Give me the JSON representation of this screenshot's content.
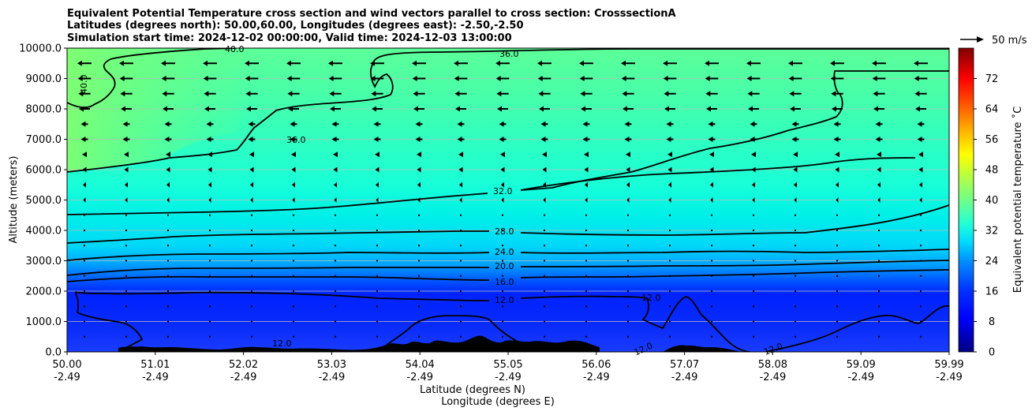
{
  "chart_data": {
    "type": "heatmap",
    "title_lines": [
      "Equivalent Potential Temperature cross section and wind vectors parallel to cross section: CrosssectionA",
      "Latitudes (degrees north): 50.00,60.00, Longitudes (degrees east): -2.50,-2.50",
      "Simulation start time: 2024-12-02 00:00:00, Valid time: 2024-12-03 13:00:00"
    ],
    "xlabel": "Latitude (degrees N)",
    "xlabel2": "Longitude (degrees E)",
    "ylabel": "Altitude (meters)",
    "xlim": [
      50.0,
      59.99
    ],
    "ylim": [
      0,
      10000
    ],
    "x_ticks": [
      {
        "lat": "50.00",
        "lon": "-2.49"
      },
      {
        "lat": "51.01",
        "lon": "-2.49"
      },
      {
        "lat": "52.02",
        "lon": "-2.49"
      },
      {
        "lat": "53.03",
        "lon": "-2.49"
      },
      {
        "lat": "54.04",
        "lon": "-2.49"
      },
      {
        "lat": "55.05",
        "lon": "-2.49"
      },
      {
        "lat": "56.06",
        "lon": "-2.49"
      },
      {
        "lat": "57.07",
        "lon": "-2.49"
      },
      {
        "lat": "58.08",
        "lon": "-2.49"
      },
      {
        "lat": "59.09",
        "lon": "-2.49"
      },
      {
        "lat": "59.99",
        "lon": "-2.49"
      }
    ],
    "y_ticks": [
      "0.0",
      "1000.0",
      "2000.0",
      "3000.0",
      "4000.0",
      "5000.0",
      "6000.0",
      "7000.0",
      "8000.0",
      "9000.0",
      "10000.0"
    ],
    "grid": "horizontal",
    "colorbar": {
      "label": "Equivalent potential temperature ˚C",
      "ticks": [
        "0",
        "8",
        "16",
        "24",
        "32",
        "40",
        "48",
        "56",
        "64",
        "72"
      ],
      "range": [
        0,
        80
      ]
    },
    "quiver_key": {
      "label": "50 m/s",
      "speed": 50
    },
    "contour_labels": [
      "40.0",
      "36.0",
      "36.0",
      "40.0",
      "32.0",
      "28.0",
      "24.0",
      "20.0",
      "16.0",
      "12.0",
      "12.0",
      "12.0",
      "12.0",
      "12.0"
    ],
    "field_bands": [
      {
        "alt_top": 1000,
        "theta_e": 10
      },
      {
        "alt_top": 2000,
        "theta_e": 13
      },
      {
        "alt_top": 2700,
        "theta_e": 18
      },
      {
        "alt_top": 3000,
        "theta_e": 22
      },
      {
        "alt_top": 3500,
        "theta_e": 26
      },
      {
        "alt_top": 4500,
        "theta_e": 29
      },
      {
        "alt_top": 6000,
        "theta_e": 33
      },
      {
        "alt_top": 8000,
        "theta_e": 36
      },
      {
        "alt_top": 10000,
        "theta_e": 38
      }
    ],
    "wind_note": "westward (leftward) winds aloft, increasing with height; weak below 2000 m"
  },
  "colors": {
    "frame": "#000000",
    "grid": "#bbbbbb",
    "terrain": "#000000",
    "contour": "#000000"
  }
}
